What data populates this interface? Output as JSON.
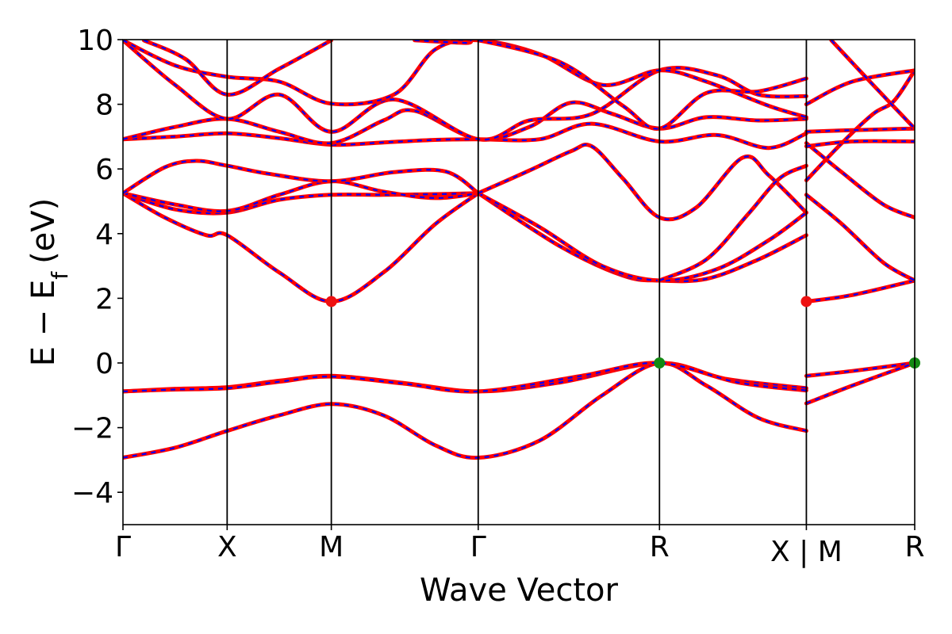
{
  "chart_data": {
    "type": "line",
    "title": "",
    "xlabel": "Wave Vector",
    "ylabel": "E − E_f (eV)",
    "ylabel_parts": {
      "base": "E − E",
      "sub": "f",
      "unit": "(eV)"
    },
    "ylim": [
      -5,
      10
    ],
    "yticks": [
      -4,
      -2,
      0,
      2,
      4,
      6,
      8,
      10
    ],
    "ytick_labels": [
      "−4",
      "−2",
      "0",
      "2",
      "4",
      "6",
      "8",
      "10"
    ],
    "xlim": [
      0,
      7.6
    ],
    "kpoints": [
      {
        "label": "Γ",
        "x": 0.0
      },
      {
        "label": "X",
        "x": 1.0
      },
      {
        "label": "M",
        "x": 2.0
      },
      {
        "label": "Γ",
        "x": 3.41
      },
      {
        "label": "R",
        "x": 5.15
      },
      {
        "label": "X | M",
        "x": 6.56
      },
      {
        "label": "R",
        "x": 7.6
      }
    ],
    "grid": false,
    "legend": "none",
    "colors": {
      "band_main": "#ff0000",
      "band_dash": "#0000ff",
      "vbm_marker": "#138a13",
      "cbm_marker": "#ee1111"
    },
    "markers": [
      {
        "kind": "CBM",
        "x": 2.0,
        "y": 1.9
      },
      {
        "kind": "CBM",
        "x": 6.56,
        "y": 1.9
      },
      {
        "kind": "VBM",
        "x": 5.15,
        "y": 0.0
      },
      {
        "kind": "VBM",
        "x": 7.6,
        "y": 0.0
      }
    ],
    "series": [
      {
        "points": [
          [
            0,
            -2.93
          ],
          [
            0.5,
            -2.62
          ],
          [
            1,
            -2.1
          ],
          [
            1.5,
            -1.62
          ],
          [
            2,
            -1.27
          ],
          [
            2.5,
            -1.62
          ],
          [
            3,
            -2.55
          ],
          [
            3.41,
            -2.93
          ],
          [
            4.0,
            -2.4
          ],
          [
            4.6,
            -1.0
          ],
          [
            5.15,
            0.0
          ],
          [
            5.6,
            -0.7
          ],
          [
            6.1,
            -1.7
          ],
          [
            6.56,
            -2.1
          ]
        ]
      },
      {
        "points": [
          [
            0,
            -0.88
          ],
          [
            0.5,
            -0.8
          ],
          [
            1,
            -0.75
          ],
          [
            1.5,
            -0.55
          ],
          [
            2,
            -0.4
          ],
          [
            2.7,
            -0.62
          ],
          [
            3.41,
            -0.88
          ],
          [
            4.2,
            -0.6
          ],
          [
            5.15,
            0.0
          ],
          [
            5.8,
            -0.5
          ],
          [
            6.56,
            -0.78
          ]
        ]
      },
      {
        "points": [
          [
            0,
            -0.88
          ],
          [
            0.5,
            -0.82
          ],
          [
            1,
            -0.78
          ],
          [
            1.5,
            -0.58
          ],
          [
            2,
            -0.42
          ],
          [
            2.7,
            -0.64
          ],
          [
            3.41,
            -0.88
          ],
          [
            4.4,
            -0.4
          ],
          [
            5.15,
            0.0
          ],
          [
            5.9,
            -0.6
          ],
          [
            6.56,
            -0.85
          ]
        ]
      },
      {
        "points": [
          [
            0,
            5.25
          ],
          [
            0.4,
            4.5
          ],
          [
            0.8,
            3.95
          ],
          [
            1,
            3.95
          ],
          [
            1.5,
            2.8
          ],
          [
            2,
            1.9
          ],
          [
            2.5,
            2.8
          ],
          [
            3.0,
            4.3
          ],
          [
            3.41,
            5.25
          ]
        ]
      },
      {
        "points": [
          [
            3.41,
            5.25
          ],
          [
            4.2,
            3.6
          ],
          [
            4.8,
            2.7
          ],
          [
            5.15,
            2.55
          ],
          [
            5.6,
            2.6
          ],
          [
            6.1,
            3.2
          ],
          [
            6.56,
            3.95
          ]
        ]
      },
      {
        "points": [
          [
            3.41,
            5.25
          ],
          [
            4.0,
            4.2
          ],
          [
            4.6,
            3.0
          ],
          [
            5.15,
            2.55
          ],
          [
            5.7,
            2.9
          ],
          [
            6.2,
            3.8
          ],
          [
            6.56,
            4.65
          ]
        ]
      },
      {
        "points": [
          [
            0,
            5.25
          ],
          [
            0.5,
            4.75
          ],
          [
            1,
            4.65
          ],
          [
            1.5,
            5.05
          ],
          [
            2,
            5.2
          ],
          [
            2.5,
            5.2
          ],
          [
            3,
            5.22
          ],
          [
            3.41,
            5.25
          ]
        ]
      },
      {
        "points": [
          [
            0,
            5.25
          ],
          [
            0.5,
            4.9
          ],
          [
            1,
            4.7
          ],
          [
            1.5,
            5.2
          ],
          [
            2,
            5.62
          ],
          [
            2.5,
            5.3
          ],
          [
            3,
            5.1
          ],
          [
            3.41,
            5.25
          ]
        ]
      },
      {
        "points": [
          [
            0,
            5.25
          ],
          [
            0.4,
            6.05
          ],
          [
            0.7,
            6.25
          ],
          [
            1,
            6.1
          ],
          [
            1.4,
            5.85
          ],
          [
            2,
            5.62
          ],
          [
            2.6,
            5.9
          ],
          [
            3.1,
            5.92
          ],
          [
            3.41,
            5.25
          ]
        ]
      },
      {
        "points": [
          [
            3.41,
            5.25
          ],
          [
            3.9,
            5.95
          ],
          [
            4.3,
            6.55
          ],
          [
            4.5,
            6.7
          ],
          [
            4.8,
            5.7
          ],
          [
            5.15,
            4.5
          ],
          [
            5.5,
            4.8
          ],
          [
            5.95,
            6.35
          ],
          [
            6.2,
            5.8
          ],
          [
            6.56,
            4.65
          ]
        ]
      },
      {
        "points": [
          [
            5.15,
            2.55
          ],
          [
            5.6,
            3.2
          ],
          [
            6.0,
            4.6
          ],
          [
            6.3,
            5.7
          ],
          [
            6.56,
            6.1
          ]
        ]
      },
      {
        "points": [
          [
            0,
            6.92
          ],
          [
            0.5,
            7.0
          ],
          [
            1,
            7.1
          ],
          [
            1.5,
            6.95
          ],
          [
            2,
            6.75
          ],
          [
            2.5,
            6.82
          ],
          [
            3,
            6.9
          ],
          [
            3.41,
            6.92
          ],
          [
            4.0,
            6.92
          ],
          [
            4.5,
            7.4
          ],
          [
            5.15,
            6.85
          ],
          [
            5.7,
            7.05
          ],
          [
            6.2,
            6.65
          ],
          [
            6.56,
            7.1
          ]
        ]
      },
      {
        "points": [
          [
            0,
            6.92
          ],
          [
            0.5,
            7.3
          ],
          [
            1,
            7.55
          ],
          [
            1.5,
            7.15
          ],
          [
            2,
            6.8
          ],
          [
            2.5,
            7.5
          ],
          [
            2.8,
            7.8
          ],
          [
            3.41,
            6.92
          ],
          [
            3.9,
            7.3
          ],
          [
            4.3,
            8.05
          ],
          [
            4.7,
            7.7
          ],
          [
            5.15,
            7.25
          ],
          [
            5.6,
            7.6
          ],
          [
            6.1,
            7.5
          ],
          [
            6.56,
            7.55
          ]
        ]
      },
      {
        "points": [
          [
            0,
            9.98
          ],
          [
            0.5,
            8.6
          ],
          [
            1,
            7.55
          ],
          [
            1.5,
            8.3
          ],
          [
            2,
            7.15
          ],
          [
            2.6,
            8.15
          ],
          [
            3.41,
            6.92
          ],
          [
            3.9,
            7.5
          ],
          [
            4.5,
            7.7
          ],
          [
            5.15,
            9.05
          ],
          [
            5.7,
            8.9
          ],
          [
            6.1,
            8.3
          ],
          [
            6.56,
            8.25
          ]
        ]
      },
      {
        "points": [
          [
            0,
            9.98
          ],
          [
            0.5,
            9.2
          ],
          [
            1,
            8.85
          ],
          [
            1.5,
            8.7
          ],
          [
            2,
            8.02
          ],
          [
            2.6,
            8.3
          ],
          [
            3,
            9.7
          ],
          [
            3.41,
            9.98
          ],
          [
            4.0,
            9.55
          ],
          [
            4.6,
            8.6
          ],
          [
            5.15,
            9.05
          ],
          [
            5.6,
            8.7
          ],
          [
            6.2,
            7.95
          ],
          [
            6.56,
            7.6
          ]
        ]
      },
      {
        "points": [
          [
            0.2,
            9.98
          ],
          [
            0.6,
            9.4
          ],
          [
            1,
            8.3
          ],
          [
            1.5,
            9.1
          ],
          [
            2,
            9.98
          ]
        ]
      },
      {
        "points": [
          [
            2.8,
            9.98
          ],
          [
            3.3,
            9.9
          ],
          [
            3.41,
            9.98
          ],
          [
            4.2,
            9.3
          ],
          [
            4.8,
            7.95
          ],
          [
            5.15,
            7.25
          ],
          [
            5.6,
            8.35
          ],
          [
            6.1,
            8.4
          ],
          [
            6.56,
            8.8
          ]
        ]
      },
      {
        "points": [
          [
            6.56,
            1.9
          ],
          [
            7.0,
            2.1
          ],
          [
            7.6,
            2.55
          ]
        ]
      },
      {
        "points": [
          [
            6.56,
            -0.4
          ],
          [
            7.0,
            -0.25
          ],
          [
            7.6,
            0.0
          ]
        ]
      },
      {
        "points": [
          [
            6.56,
            -1.25
          ],
          [
            7.0,
            -0.7
          ],
          [
            7.6,
            0.0
          ]
        ]
      },
      {
        "points": [
          [
            6.56,
            5.2
          ],
          [
            6.9,
            4.3
          ],
          [
            7.3,
            3.1
          ],
          [
            7.6,
            2.55
          ]
        ]
      },
      {
        "points": [
          [
            6.56,
            5.65
          ],
          [
            6.9,
            6.8
          ],
          [
            7.2,
            7.7
          ],
          [
            7.4,
            8.1
          ],
          [
            7.6,
            9.05
          ]
        ]
      },
      {
        "points": [
          [
            6.56,
            6.8
          ],
          [
            6.9,
            5.9
          ],
          [
            7.3,
            4.9
          ],
          [
            7.6,
            4.5
          ]
        ]
      },
      {
        "points": [
          [
            6.56,
            6.7
          ],
          [
            7.0,
            6.85
          ],
          [
            7.6,
            6.85
          ]
        ]
      },
      {
        "points": [
          [
            6.56,
            7.15
          ],
          [
            7.0,
            7.2
          ],
          [
            7.6,
            7.25
          ]
        ]
      },
      {
        "points": [
          [
            6.56,
            8.0
          ],
          [
            7.0,
            8.7
          ],
          [
            7.6,
            9.05
          ]
        ]
      },
      {
        "points": [
          [
            6.8,
            9.98
          ],
          [
            7.2,
            8.6
          ],
          [
            7.6,
            7.25
          ]
        ]
      }
    ]
  }
}
